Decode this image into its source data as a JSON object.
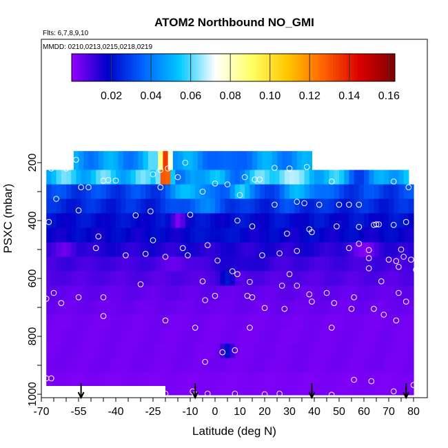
{
  "chart_data": {
    "type": "heatmap",
    "title": "ATOM2 Northbound NO_GMI",
    "subtitle_flights": "Flts: 6,7,8,9,10",
    "subtitle_dates": "MMDD: 0210,0213,0215,0218,0219",
    "xlabel": "Latitude (deg N)",
    "ylabel": "PSXC (mbar)",
    "xlim": [
      -70,
      83
    ],
    "ylim": [
      1010,
      0
    ],
    "x_ticks": [
      -70,
      -55,
      -40,
      -25,
      -10,
      0,
      10,
      20,
      30,
      40,
      50,
      60,
      70,
      80
    ],
    "y_ticks": [
      200,
      400,
      600,
      800,
      1000
    ],
    "colorbar": {
      "range": [
        0,
        0.163
      ],
      "ticks": [
        0.02,
        0.04,
        0.06,
        0.08,
        0.1,
        0.12,
        0.14,
        0.16
      ],
      "tick_labels": [
        "0.02",
        "0.04",
        "0.06",
        "0.08",
        "0.10",
        "0.12",
        "0.14",
        "0.16"
      ],
      "colors": [
        "#9400ff",
        "#0000c8",
        "#0064ff",
        "#00c8ff",
        "#ffffff",
        "#ffff66",
        "#ffc800",
        "#ff6400",
        "#dc0000",
        "#800000"
      ]
    },
    "arrows_latitude": [
      -54,
      -8,
      39,
      77
    ],
    "levels": [
      {
        "p": 200,
        "lat_min": -57,
        "lat_max": 38,
        "background": 0.045,
        "features": [
          {
            "lat": -20,
            "width": 3,
            "value": 0.14
          },
          {
            "lat": -25,
            "width": 4,
            "value": 0.055
          },
          {
            "lat": 5,
            "width": 8,
            "value": 0.03
          }
        ]
      },
      {
        "p": 250,
        "lat_min": -68,
        "lat_max": 78,
        "background": 0.055,
        "features": [
          {
            "lat": -20,
            "width": 3,
            "value": 0.16
          },
          {
            "lat": -14,
            "width": 6,
            "value": 0.03
          },
          {
            "lat": 6,
            "width": 8,
            "value": 0.04
          },
          {
            "lat": 28,
            "width": 6,
            "value": 0.07
          },
          {
            "lat": 60,
            "width": 12,
            "value": 0.035
          }
        ]
      },
      {
        "p": 300,
        "lat_min": -68,
        "lat_max": 80,
        "background": 0.03,
        "features": [
          {
            "lat": -10,
            "width": 10,
            "value": 0.055
          },
          {
            "lat": 10,
            "width": 6,
            "value": 0.06
          },
          {
            "lat": 35,
            "width": 12,
            "value": 0.05
          }
        ]
      },
      {
        "p": 350,
        "lat_min": -68,
        "lat_max": 80,
        "background": 0.025,
        "features": [
          {
            "lat": -5,
            "width": 15,
            "value": 0.04
          },
          {
            "lat": 30,
            "width": 10,
            "value": 0.03
          }
        ]
      },
      {
        "p": 400,
        "lat_min": -68,
        "lat_max": 80,
        "background": 0.02,
        "features": [
          {
            "lat": -15,
            "width": 4,
            "value": 0.005
          }
        ]
      },
      {
        "p": 450,
        "lat_min": -68,
        "lat_max": 80,
        "background": 0.018,
        "features": [
          {
            "lat": 0,
            "width": 10,
            "value": 0.022
          }
        ]
      },
      {
        "p": 500,
        "lat_min": -68,
        "lat_max": 80,
        "background": 0.014,
        "features": [
          {
            "lat": -60,
            "width": 6,
            "value": 0.004
          },
          {
            "lat": 60,
            "width": 10,
            "value": 0.004
          }
        ]
      },
      {
        "p": 550,
        "lat_min": -68,
        "lat_max": 80,
        "background": 0.01,
        "features": [
          {
            "lat": -15,
            "width": 8,
            "value": 0.005
          },
          {
            "lat": 10,
            "width": 15,
            "value": 0.015
          }
        ]
      },
      {
        "p": 600,
        "lat_min": -68,
        "lat_max": 80,
        "background": 0.008,
        "features": [
          {
            "lat": 5,
            "width": 4,
            "value": 0.022
          }
        ]
      },
      {
        "p": 650,
        "lat_min": -68,
        "lat_max": 80,
        "background": 0.006,
        "features": []
      },
      {
        "p": 700,
        "lat_min": -68,
        "lat_max": 80,
        "background": 0.005,
        "features": []
      },
      {
        "p": 750,
        "lat_min": -68,
        "lat_max": 80,
        "background": 0.004,
        "features": []
      },
      {
        "p": 800,
        "lat_min": -68,
        "lat_max": 80,
        "background": 0.004,
        "features": []
      },
      {
        "p": 850,
        "lat_min": -68,
        "lat_max": 80,
        "background": 0.004,
        "features": [
          {
            "lat": 5,
            "width": 3,
            "value": 0.02
          }
        ]
      },
      {
        "p": 900,
        "lat_min": -68,
        "lat_max": 80,
        "background": 0.004,
        "features": []
      },
      {
        "p": 950,
        "lat_min": -68,
        "lat_max": 80,
        "background": 0.003,
        "features": []
      },
      {
        "p": 990,
        "lat_min": -20,
        "lat_max": 80,
        "background": 0.003,
        "features": []
      }
    ],
    "observations": [
      {
        "lat": -56,
        "p": 190
      },
      {
        "lat": -66,
        "p": 220
      },
      {
        "lat": -60,
        "p": 220
      },
      {
        "lat": -45,
        "p": 262
      },
      {
        "lat": -43,
        "p": 260
      },
      {
        "lat": -40,
        "p": 262
      },
      {
        "lat": -25,
        "p": 240
      },
      {
        "lat": -22,
        "p": 225
      },
      {
        "lat": -19,
        "p": 220
      },
      {
        "lat": -15,
        "p": 250
      },
      {
        "lat": -12,
        "p": 200
      },
      {
        "lat": -5,
        "p": 300
      },
      {
        "lat": 0,
        "p": 272
      },
      {
        "lat": 5,
        "p": 275
      },
      {
        "lat": 10,
        "p": 312
      },
      {
        "lat": 12,
        "p": 250
      },
      {
        "lat": 16,
        "p": 258
      },
      {
        "lat": 18,
        "p": 258
      },
      {
        "lat": 24,
        "p": 218
      },
      {
        "lat": 30,
        "p": 220
      },
      {
        "lat": 37,
        "p": 215
      },
      {
        "lat": 47,
        "p": 265
      },
      {
        "lat": 72,
        "p": 265
      },
      {
        "lat": 78,
        "p": 285
      },
      {
        "lat": -54,
        "p": 285
      },
      {
        "lat": -51,
        "p": 285
      },
      {
        "lat": -22,
        "p": 285
      },
      {
        "lat": -64,
        "p": 325
      },
      {
        "lat": 24,
        "p": 345
      },
      {
        "lat": 33,
        "p": 335
      },
      {
        "lat": 36,
        "p": 340
      },
      {
        "lat": 42,
        "p": 345
      },
      {
        "lat": 50,
        "p": 345
      },
      {
        "lat": 54,
        "p": 345
      },
      {
        "lat": 58,
        "p": 345
      },
      {
        "lat": -55,
        "p": 365
      },
      {
        "lat": -26,
        "p": 368
      },
      {
        "lat": -32,
        "p": 382
      },
      {
        "lat": -10,
        "p": 380
      },
      {
        "lat": 9,
        "p": 400
      },
      {
        "lat": 15,
        "p": 420
      },
      {
        "lat": 38,
        "p": 430
      },
      {
        "lat": 39,
        "p": 440
      },
      {
        "lat": 49,
        "p": 420
      },
      {
        "lat": 58,
        "p": 422
      },
      {
        "lat": 64,
        "p": 415
      },
      {
        "lat": 65,
        "p": 413
      },
      {
        "lat": 66,
        "p": 413
      },
      {
        "lat": 72,
        "p": 415
      },
      {
        "lat": 77,
        "p": 405
      },
      {
        "lat": -67,
        "p": 405
      },
      {
        "lat": -47,
        "p": 455
      },
      {
        "lat": -25,
        "p": 468
      },
      {
        "lat": 29,
        "p": 445
      },
      {
        "lat": -48,
        "p": 495
      },
      {
        "lat": -13,
        "p": 495
      },
      {
        "lat": -3,
        "p": 485
      },
      {
        "lat": 58,
        "p": 480
      },
      {
        "lat": 54,
        "p": 495
      },
      {
        "lat": 62,
        "p": 502
      },
      {
        "lat": 75,
        "p": 500
      },
      {
        "lat": -36,
        "p": 520
      },
      {
        "lat": -28,
        "p": 515
      },
      {
        "lat": -20,
        "p": 525
      },
      {
        "lat": -11,
        "p": 520
      },
      {
        "lat": 1,
        "p": 538
      },
      {
        "lat": 26,
        "p": 513
      },
      {
        "lat": 19,
        "p": 520
      },
      {
        "lat": 33,
        "p": 505
      },
      {
        "lat": 70,
        "p": 535
      },
      {
        "lat": 76,
        "p": 525
      },
      {
        "lat": 62,
        "p": 530
      },
      {
        "lat": 73,
        "p": 540
      },
      {
        "lat": 79,
        "p": 535
      },
      {
        "lat": 7,
        "p": 575
      },
      {
        "lat": 9,
        "p": 585
      },
      {
        "lat": 30,
        "p": 585
      },
      {
        "lat": 62,
        "p": 565
      },
      {
        "lat": 74,
        "p": 560
      },
      {
        "lat": 81,
        "p": 570
      },
      {
        "lat": -30,
        "p": 620
      },
      {
        "lat": -5,
        "p": 610
      },
      {
        "lat": 14,
        "p": 612
      },
      {
        "lat": 27,
        "p": 625
      },
      {
        "lat": 33,
        "p": 625
      },
      {
        "lat": 67,
        "p": 610
      },
      {
        "lat": -65,
        "p": 650
      },
      {
        "lat": -68,
        "p": 670
      },
      {
        "lat": -62,
        "p": 685
      },
      {
        "lat": -55,
        "p": 665
      },
      {
        "lat": -45,
        "p": 665
      },
      {
        "lat": 0,
        "p": 660
      },
      {
        "lat": 13,
        "p": 660
      },
      {
        "lat": 15,
        "p": 665
      },
      {
        "lat": 38,
        "p": 655
      },
      {
        "lat": 45,
        "p": 650
      },
      {
        "lat": 56,
        "p": 665
      },
      {
        "lat": 74,
        "p": 650
      },
      {
        "lat": 77,
        "p": 680
      },
      {
        "lat": -4,
        "p": 675
      },
      {
        "lat": 39,
        "p": 680
      },
      {
        "lat": 48,
        "p": 685
      },
      {
        "lat": 20,
        "p": 702
      },
      {
        "lat": 28,
        "p": 705
      },
      {
        "lat": 55,
        "p": 705
      },
      {
        "lat": 64,
        "p": 705
      },
      {
        "lat": 68,
        "p": 725
      },
      {
        "lat": -45,
        "p": 730
      },
      {
        "lat": -20,
        "p": 745
      },
      {
        "lat": 73,
        "p": 745
      },
      {
        "lat": -8,
        "p": 770
      },
      {
        "lat": 14,
        "p": 770
      },
      {
        "lat": 47,
        "p": 770
      },
      {
        "lat": 8,
        "p": 848
      },
      {
        "lat": 3,
        "p": 855
      },
      {
        "lat": -4,
        "p": 888
      },
      {
        "lat": -68,
        "p": 945
      },
      {
        "lat": -66,
        "p": 945
      },
      {
        "lat": 56,
        "p": 950
      },
      {
        "lat": 63,
        "p": 955
      },
      {
        "lat": -20,
        "p": 998
      },
      {
        "lat": -9,
        "p": 990
      },
      {
        "lat": -8,
        "p": 1000
      },
      {
        "lat": -3,
        "p": 998
      },
      {
        "lat": 8,
        "p": 998
      },
      {
        "lat": 20,
        "p": 1000
      },
      {
        "lat": 26,
        "p": 998
      },
      {
        "lat": 47,
        "p": 1002
      },
      {
        "lat": 72,
        "p": 990
      },
      {
        "lat": 80,
        "p": 968
      }
    ]
  }
}
